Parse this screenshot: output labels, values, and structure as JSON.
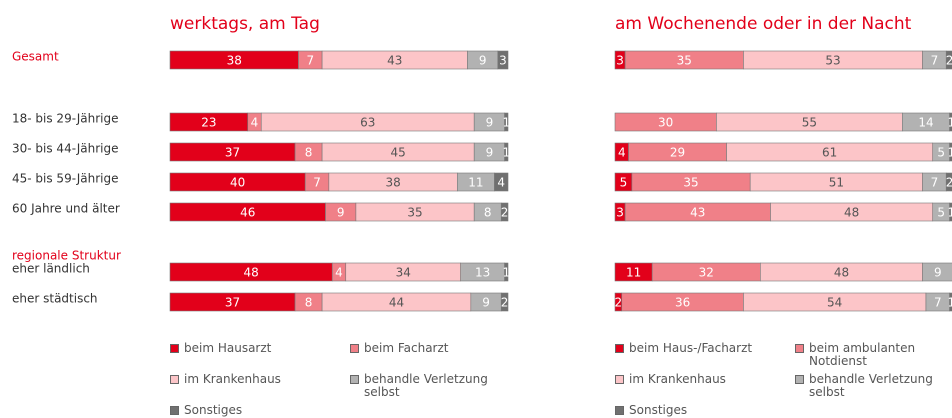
{
  "chart_data": [
    {
      "type": "stacked_bar",
      "title": "werktags, am Tag",
      "categories": [
        "Gesamt",
        "18- bis 29-Jährige",
        "30- bis 44-Jährige",
        "45- bis 59-Jährige",
        "60 Jahre und älter",
        "eher ländlich",
        "eher städtisch"
      ],
      "group_label": "regionale Struktur",
      "xlim": [
        0,
        100
      ],
      "series": [
        {
          "name": "beim Hausarzt",
          "color": "#e2001a",
          "values": [
            38,
            23,
            37,
            40,
            46,
            48,
            37
          ]
        },
        {
          "name": "beim Facharzt",
          "color": "#f08088",
          "values": [
            7,
            4,
            8,
            7,
            9,
            4,
            8
          ]
        },
        {
          "name": "im Krankenhaus",
          "color": "#fcc5c8",
          "values": [
            43,
            63,
            45,
            38,
            35,
            34,
            44
          ]
        },
        {
          "name": "behandle Verletzung selbst",
          "color": "#b2b2b2",
          "values": [
            9,
            9,
            9,
            11,
            8,
            13,
            9
          ]
        },
        {
          "name": "Sonstiges",
          "color": "#707070",
          "values": [
            3,
            1,
            1,
            4,
            2,
            1,
            2
          ]
        }
      ]
    },
    {
      "type": "stacked_bar",
      "title": "am Wochenende oder in der Nacht",
      "xlim": [
        0,
        100
      ],
      "series": [
        {
          "name": "beim Haus-/Facharzt",
          "color": "#e2001a",
          "values": [
            3,
            null,
            4,
            5,
            3,
            11,
            2
          ]
        },
        {
          "name": "beim ambulanten Notdienst",
          "color": "#f08088",
          "values": [
            35,
            30,
            29,
            35,
            43,
            32,
            36
          ]
        },
        {
          "name": "im Krankenhaus",
          "color": "#fcc5c8",
          "values": [
            53,
            55,
            61,
            51,
            48,
            48,
            54
          ]
        },
        {
          "name": "behandle Verletzung selbst",
          "color": "#b2b2b2",
          "values": [
            7,
            14,
            5,
            7,
            5,
            9,
            7
          ]
        },
        {
          "name": "Sonstiges",
          "color": "#707070",
          "values": [
            2,
            1,
            1,
            2,
            1,
            null,
            1
          ]
        }
      ]
    }
  ]
}
